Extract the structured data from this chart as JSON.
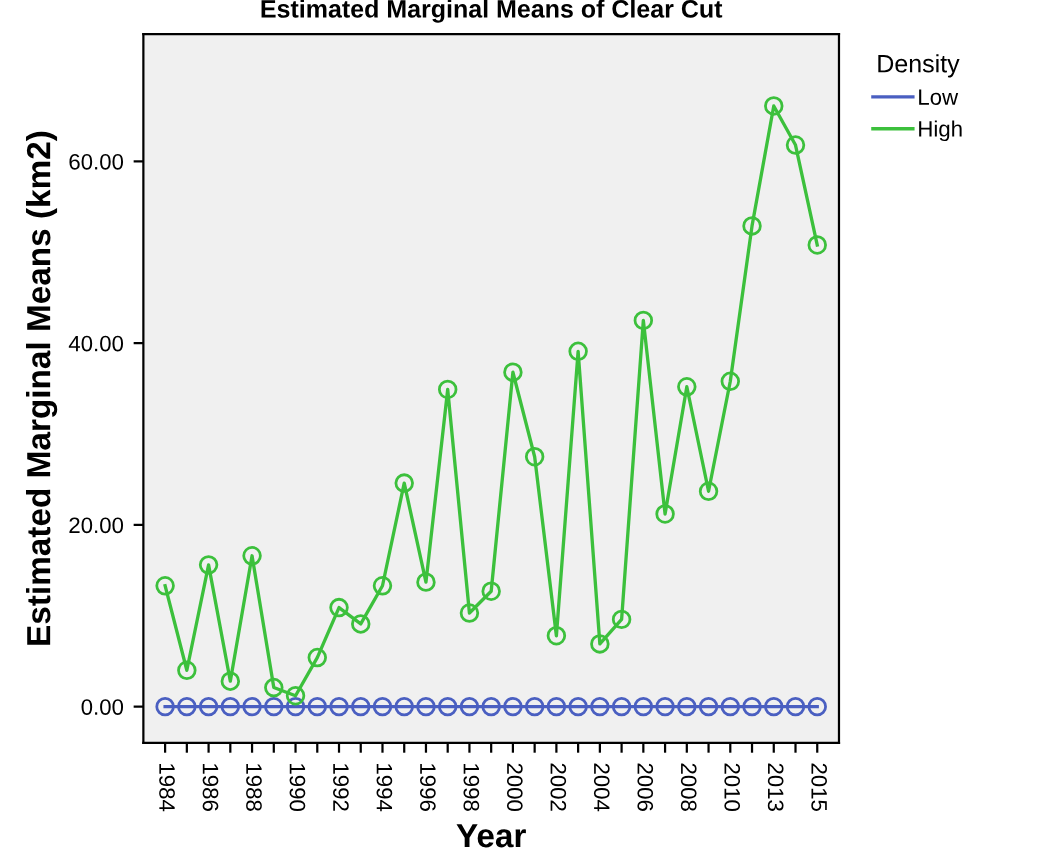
{
  "chart_data": {
    "type": "line",
    "title": "Estimated Marginal Means of Clear Cut",
    "xlabel": "Year",
    "ylabel": "Estimated Marginal Means (km2)",
    "legend_title": "Density",
    "categories": [
      "1984",
      null,
      "1986",
      null,
      "1988",
      null,
      "1990",
      null,
      "1992",
      null,
      "1994",
      null,
      "1996",
      null,
      "1998",
      null,
      "2000",
      null,
      "2002",
      null,
      "2004",
      null,
      "2006",
      null,
      "2008",
      null,
      "2010",
      null,
      "2013",
      null,
      "2015"
    ],
    "series": [
      {
        "name": "Low",
        "color": "#4a5fc1",
        "values": [
          0,
          0,
          0,
          0,
          0,
          0,
          0,
          0,
          0,
          0,
          0,
          0,
          0,
          0,
          0,
          0,
          0,
          0,
          0,
          0,
          0,
          0,
          0,
          0,
          0,
          0,
          0,
          0,
          0,
          0,
          0
        ]
      },
      {
        "name": "High",
        "color": "#3cc03c",
        "values": [
          13.3,
          4.0,
          15.6,
          2.8,
          16.6,
          2.1,
          1.2,
          5.4,
          10.9,
          9.1,
          13.3,
          24.6,
          13.7,
          34.9,
          10.3,
          12.7,
          36.8,
          27.5,
          7.8,
          39.1,
          6.9,
          9.6,
          42.5,
          21.2,
          35.2,
          23.7,
          35.8,
          52.9,
          66.1,
          61.8,
          50.8
        ]
      }
    ],
    "ylim": [
      -4,
      74
    ],
    "yticks": [
      {
        "value": 0,
        "label": "0.00"
      },
      {
        "value": 20,
        "label": "20.00"
      },
      {
        "value": 40,
        "label": "40.00"
      },
      {
        "value": 60,
        "label": "60.00"
      }
    ],
    "marker": "circle",
    "legend": "top right",
    "grid": false
  }
}
